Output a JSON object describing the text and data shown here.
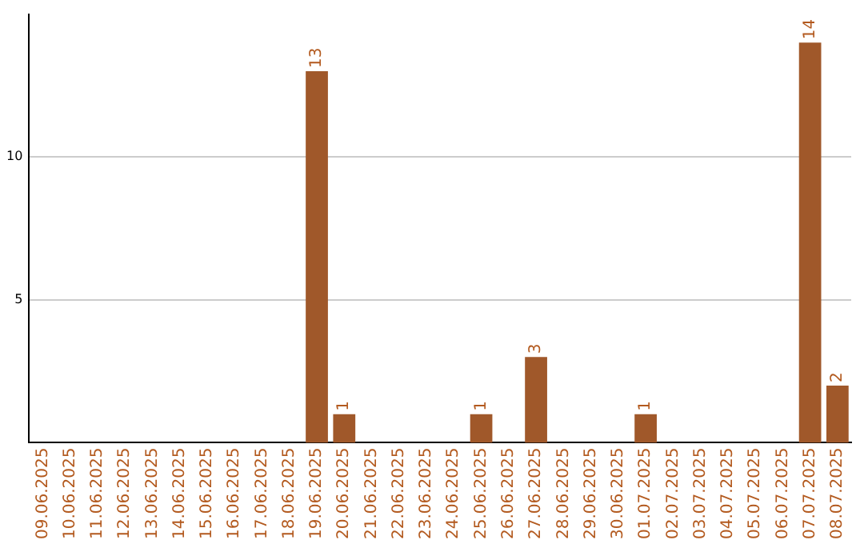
{
  "chart_data": {
    "type": "bar",
    "categories": [
      "09.06.2025",
      "10.06.2025",
      "11.06.2025",
      "12.06.2025",
      "13.06.2025",
      "14.06.2025",
      "15.06.2025",
      "16.06.2025",
      "17.06.2025",
      "18.06.2025",
      "19.06.2025",
      "20.06.2025",
      "21.06.2025",
      "22.06.2025",
      "23.06.2025",
      "24.06.2025",
      "25.06.2025",
      "26.06.2025",
      "27.06.2025",
      "28.06.2025",
      "29.06.2025",
      "30.06.2025",
      "01.07.2025",
      "02.07.2025",
      "03.07.2025",
      "04.07.2025",
      "05.07.2025",
      "06.07.2025",
      "07.07.2025",
      "08.07.2025"
    ],
    "values": [
      0,
      0,
      0,
      0,
      0,
      0,
      0,
      0,
      0,
      0,
      13,
      1,
      0,
      0,
      0,
      0,
      1,
      0,
      3,
      0,
      0,
      0,
      1,
      0,
      0,
      0,
      0,
      0,
      14,
      2
    ],
    "value_labels": [
      null,
      null,
      null,
      null,
      null,
      null,
      null,
      null,
      null,
      null,
      "13",
      "1",
      null,
      null,
      null,
      null,
      "1",
      null,
      "3",
      null,
      null,
      null,
      "1",
      null,
      null,
      null,
      null,
      null,
      "14",
      "2"
    ],
    "color": "#a0582a",
    "ylim": [
      0,
      15
    ],
    "yticks": [
      5,
      10
    ],
    "grid": "y",
    "legend": false
  }
}
